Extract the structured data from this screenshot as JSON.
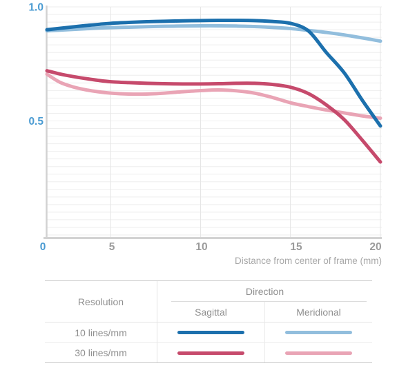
{
  "chart_data": {
    "type": "line",
    "title": "",
    "xlabel": "Distance from center of frame (mm)",
    "ylabel": "",
    "xlim": [
      0,
      20
    ],
    "ylim": [
      0,
      1.0
    ],
    "grid": true,
    "x_tick_labels": [
      "0",
      "5",
      "10",
      "15",
      "20"
    ],
    "y_tick_labels": [
      "1.0",
      "0.5"
    ],
    "y_tick_values": [
      1.0,
      0.5
    ],
    "legend_position": "bottom-table",
    "x": [
      0,
      1,
      2,
      3,
      4,
      5,
      6,
      7,
      8,
      9,
      10,
      11,
      12,
      13,
      14,
      15,
      16,
      17,
      18,
      19,
      20
    ],
    "series": [
      {
        "name": "10 lines/mm Meridional",
        "color": "#92bedd",
        "values": [
          0.895,
          0.898,
          0.901,
          0.904,
          0.907,
          0.909,
          0.911,
          0.913,
          0.915,
          0.916,
          0.917,
          0.917,
          0.916,
          0.914,
          0.91,
          0.905,
          0.897,
          0.888,
          0.877,
          0.864,
          0.85
        ]
      },
      {
        "name": "30 lines/mm Meridional",
        "color": "#e9a4b5",
        "values": [
          0.705,
          0.67,
          0.65,
          0.637,
          0.628,
          0.622,
          0.618,
          0.618,
          0.622,
          0.628,
          0.633,
          0.636,
          0.632,
          0.622,
          0.603,
          0.58,
          0.563,
          0.548,
          0.535,
          0.522,
          0.512
        ]
      },
      {
        "name": "30 lines/mm Sagittal",
        "color": "#c64a6c",
        "values": [
          0.72,
          0.706,
          0.695,
          0.686,
          0.678,
          0.672,
          0.668,
          0.665,
          0.663,
          0.662,
          0.662,
          0.663,
          0.665,
          0.665,
          0.66,
          0.648,
          0.62,
          0.57,
          0.505,
          0.415,
          0.32
        ]
      },
      {
        "name": "10 lines/mm Sagittal",
        "color": "#1c70ad",
        "values": [
          0.9,
          0.906,
          0.912,
          0.918,
          0.923,
          0.928,
          0.932,
          0.935,
          0.937,
          0.939,
          0.94,
          0.941,
          0.941,
          0.94,
          0.936,
          0.928,
          0.895,
          0.8,
          0.71,
          0.59,
          0.478
        ]
      }
    ]
  },
  "colors": {
    "axis_label_blue": "#4a9bd2",
    "tick_gray": "#9b9b9b",
    "xlabel_gray": "#a8a8a8",
    "grid_light": "#eeeeee",
    "grid_vertical": "#e6e6e6",
    "axis_line": "#d2d2d2",
    "line_10_sagittal": "#1c70ad",
    "line_10_meridional": "#92bedd",
    "line_30_sagittal": "#c64a6c",
    "line_30_meridional": "#e9a4b5"
  },
  "legend_table": {
    "resolution_header": "Resolution",
    "direction_header": "Direction",
    "sagittal_header": "Sagittal",
    "meridional_header": "Meridional",
    "rows": [
      {
        "label": "10 lines/mm",
        "sagittal_color": "#1c70ad",
        "meridional_color": "#92bedd"
      },
      {
        "label": "30 lines/mm",
        "sagittal_color": "#c64a6c",
        "meridional_color": "#e9a4b5"
      }
    ]
  }
}
